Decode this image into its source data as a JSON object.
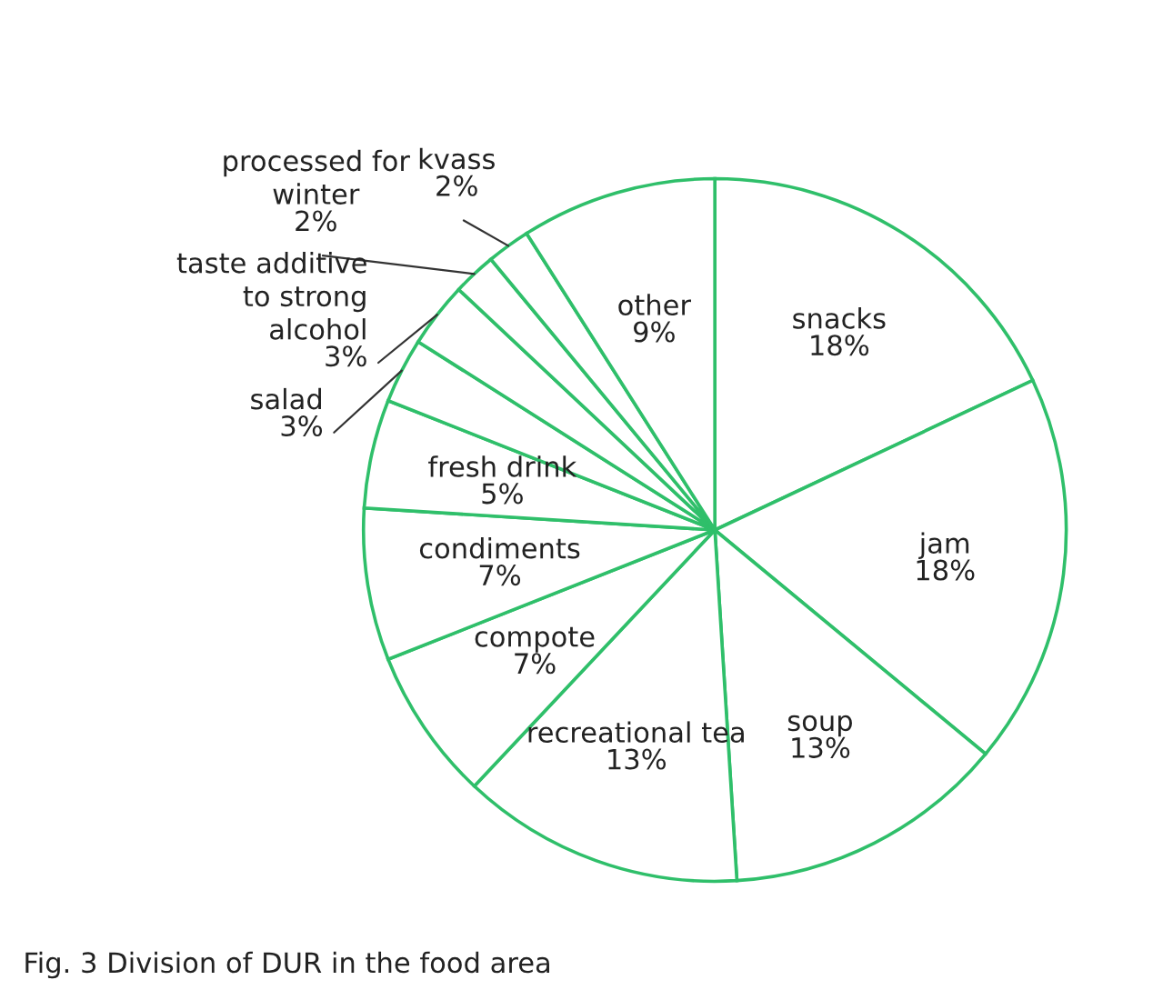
{
  "chart_data": {
    "type": "pie",
    "categories": [
      "snacks",
      "jam",
      "soup",
      "recreational tea",
      "compote",
      "condiments",
      "fresh drink",
      "salad",
      "taste additive to strong alcohol",
      "processed for winter",
      "kvass",
      "other"
    ],
    "values": [
      18,
      18,
      13,
      13,
      7,
      7,
      5,
      3,
      3,
      2,
      2,
      9
    ],
    "value_labels": [
      "18%",
      "18%",
      "13%",
      "13%",
      "7%",
      "7%",
      "5%",
      "3%",
      "3%",
      "2%",
      "2%",
      "9%"
    ],
    "colors": [
      "#ffffff",
      "#ffffff",
      "#ffffff",
      "#ffffff",
      "#ffffff",
      "#ffffff",
      "#ffffff",
      "#ffffff",
      "#ffffff",
      "#ffffff",
      "#ffffff",
      "#ffffff"
    ],
    "annotations": [
      "Fig. 3 Division of DUR in the food area"
    ]
  }
}
